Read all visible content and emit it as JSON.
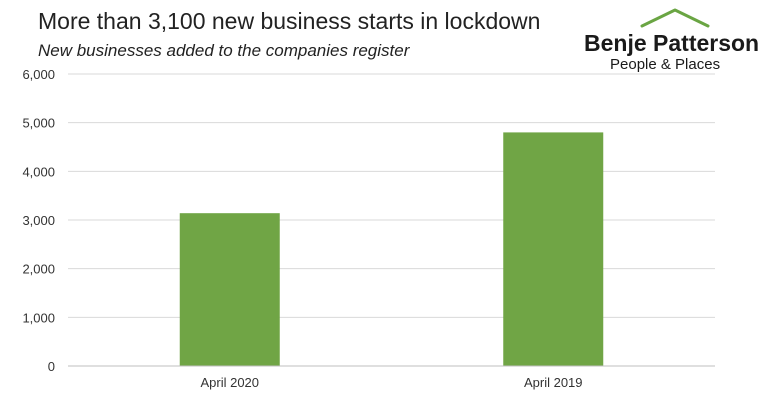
{
  "header": {
    "title": "More than 3,100 new business starts in lockdown",
    "subtitle": "New businesses added to the companies register"
  },
  "logo": {
    "name": "Benje Patterson",
    "tagline": "People & Places",
    "accent": "#6aa543"
  },
  "chart_data": {
    "type": "bar",
    "categories": [
      "April 2020",
      "April 2019"
    ],
    "series": [
      {
        "values": [
          3140,
          4800
        ]
      }
    ],
    "title": "More than 3,100 new business starts in lockdown",
    "subtitle": "New businesses added to the companies register",
    "xlabel": "",
    "ylabel": "",
    "ylim": [
      0,
      6000
    ],
    "yticks": [
      0,
      1000,
      2000,
      3000,
      4000,
      5000,
      6000
    ],
    "ytick_labels": [
      "0",
      "1,000",
      "2,000",
      "3,000",
      "4,000",
      "5,000",
      "6,000"
    ],
    "grid": true,
    "legend": "none",
    "bar_color": "#70a545",
    "grid_color": "#d9d9d9"
  }
}
